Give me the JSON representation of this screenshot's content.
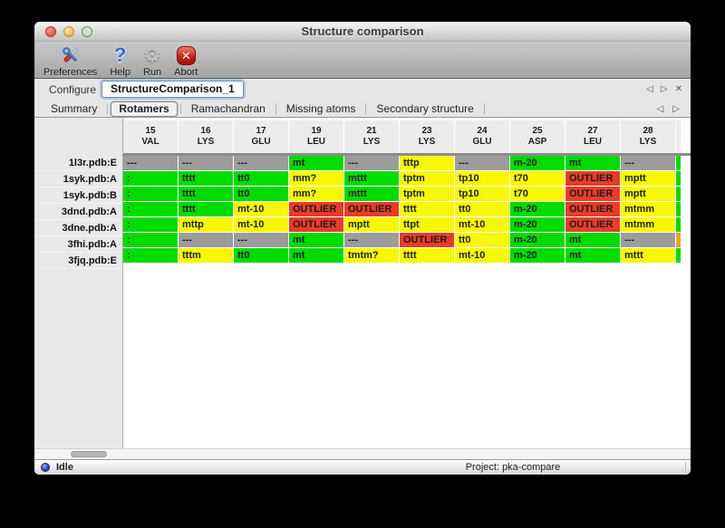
{
  "window": {
    "title": "Structure comparison"
  },
  "toolbar": {
    "buttons": [
      {
        "label": "Preferences"
      },
      {
        "label": "Help"
      },
      {
        "label": "Run"
      },
      {
        "label": "Abort"
      }
    ]
  },
  "icons": {
    "help": "?",
    "abort_x": "✕",
    "gear": "⚙",
    "prev": "◁",
    "next": "▷",
    "close": "✕"
  },
  "configure": {
    "label": "Configure",
    "value": "StructureComparison_1"
  },
  "tabs": {
    "labels": [
      "Summary",
      "Rotamers",
      "Ramachandran",
      "Missing atoms",
      "Secondary structure"
    ],
    "selected_index": 1
  },
  "palette": {
    "green": "#00dc00",
    "yellow": "#f8f800",
    "red": "#e83c28",
    "gray": "#9c9c9c",
    "orange": "#f0a028"
  },
  "grid": {
    "columns": [
      [
        "15",
        "VAL"
      ],
      [
        "16",
        "LYS"
      ],
      [
        "17",
        "GLU"
      ],
      [
        "19",
        "LEU"
      ],
      [
        "21",
        "LYS"
      ],
      [
        "23",
        "LYS"
      ],
      [
        "24",
        "GLU"
      ],
      [
        "25",
        "ASP"
      ],
      [
        "27",
        "LEU"
      ],
      [
        "28",
        "LYS"
      ]
    ],
    "rows": [
      {
        "label": "1l3r.pdb:E",
        "cells": [
          [
            "---",
            "gray"
          ],
          [
            "---",
            "gray"
          ],
          [
            "---",
            "gray"
          ],
          [
            "mt",
            "green"
          ],
          [
            "---",
            "gray"
          ],
          [
            "tttp",
            "yellow"
          ],
          [
            "---",
            "gray"
          ],
          [
            "m-20",
            "green"
          ],
          [
            "mt",
            "green"
          ],
          [
            "---",
            "gray"
          ]
        ],
        "sliver": "green"
      },
      {
        "label": "1syk.pdb:A",
        "cells": [
          [
            ":",
            "green"
          ],
          [
            "tttt",
            "green"
          ],
          [
            "tt0",
            "green"
          ],
          [
            "mm?",
            "yellow"
          ],
          [
            "mttt",
            "green"
          ],
          [
            "tptm",
            "yellow"
          ],
          [
            "tp10",
            "yellow"
          ],
          [
            "t70",
            "yellow"
          ],
          [
            "OUTLIER",
            "red"
          ],
          [
            "mptt",
            "yellow"
          ]
        ],
        "sliver": "green"
      },
      {
        "label": "1syk.pdb:B",
        "cells": [
          [
            ":",
            "green"
          ],
          [
            "tttt",
            "green"
          ],
          [
            "tt0",
            "green"
          ],
          [
            "mm?",
            "yellow"
          ],
          [
            "mttt",
            "green"
          ],
          [
            "tptm",
            "yellow"
          ],
          [
            "tp10",
            "yellow"
          ],
          [
            "t70",
            "yellow"
          ],
          [
            "OUTLIER",
            "red"
          ],
          [
            "mptt",
            "yellow"
          ]
        ],
        "sliver": "green"
      },
      {
        "label": "3dnd.pdb:A",
        "cells": [
          [
            ":",
            "green"
          ],
          [
            "tttt",
            "green"
          ],
          [
            "mt-10",
            "yellow"
          ],
          [
            "OUTLIER",
            "red"
          ],
          [
            "OUTLIER",
            "red"
          ],
          [
            "tttt",
            "yellow"
          ],
          [
            "tt0",
            "yellow"
          ],
          [
            "m-20",
            "green"
          ],
          [
            "OUTLIER",
            "red"
          ],
          [
            "mtmm",
            "yellow"
          ]
        ],
        "sliver": "green"
      },
      {
        "label": "3dne.pdb:A",
        "cells": [
          [
            ":",
            "green"
          ],
          [
            "mttp",
            "yellow"
          ],
          [
            "mt-10",
            "yellow"
          ],
          [
            "OUTLIER",
            "red"
          ],
          [
            "mptt",
            "yellow"
          ],
          [
            "ttpt",
            "yellow"
          ],
          [
            "mt-10",
            "yellow"
          ],
          [
            "m-20",
            "green"
          ],
          [
            "OUTLIER",
            "red"
          ],
          [
            "mtmm",
            "yellow"
          ]
        ],
        "sliver": "green"
      },
      {
        "label": "3fhi.pdb:A",
        "cells": [
          [
            ":",
            "green"
          ],
          [
            "---",
            "gray"
          ],
          [
            "---",
            "gray"
          ],
          [
            "mt",
            "green"
          ],
          [
            "---",
            "gray"
          ],
          [
            "OUTLIER",
            "red"
          ],
          [
            "tt0",
            "yellow"
          ],
          [
            "m-20",
            "green"
          ],
          [
            "mt",
            "green"
          ],
          [
            "---",
            "gray"
          ]
        ],
        "sliver": "orange"
      },
      {
        "label": "3fjq.pdb:E",
        "cells": [
          [
            ":",
            "green"
          ],
          [
            "tttm",
            "yellow"
          ],
          [
            "tt0",
            "green"
          ],
          [
            "mt",
            "green"
          ],
          [
            "tmtm?",
            "yellow"
          ],
          [
            "tttt",
            "yellow"
          ],
          [
            "mt-10",
            "yellow"
          ],
          [
            "m-20",
            "green"
          ],
          [
            "mt",
            "green"
          ],
          [
            "mttt",
            "yellow"
          ]
        ],
        "sliver": "green"
      }
    ]
  },
  "statusbar": {
    "status": "Idle",
    "project": "Project: pka-compare"
  }
}
